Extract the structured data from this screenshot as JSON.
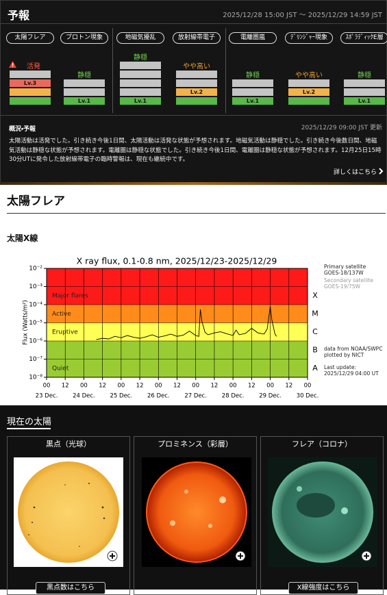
{
  "forecast": {
    "title": "予報",
    "period": "2025/12/28 15:00 JST 〜 2025/12/29 14:59 JST",
    "level_colors": [
      "#58b848",
      "#f4b24a",
      "#e96a5c"
    ],
    "items": [
      {
        "name": "太陽フレア",
        "status": "活発",
        "status_color": "#ff5a3a",
        "warning": true,
        "level": 3,
        "level_label": "Lv.3",
        "bars": 4
      },
      {
        "name": "プロトン現象",
        "status": "静穏",
        "status_color": "#6fcf4a",
        "warning": false,
        "level": 1,
        "level_label": "Lv.1",
        "bars": 3
      },
      {
        "name": "地磁気擾乱",
        "status": "静穏",
        "status_color": "#6fcf4a",
        "warning": false,
        "level": 1,
        "level_label": "Lv.1",
        "bars": 5
      },
      {
        "name": "放射線帯電子",
        "status": "やや高い",
        "status_color": "#f0a030",
        "warning": false,
        "level": 2,
        "level_label": "Lv.2",
        "bars": 4
      },
      {
        "name": "電離圏嵐",
        "status": "静穏",
        "status_color": "#6fcf4a",
        "warning": false,
        "level": 1,
        "level_label": "Lv.1",
        "bars": 3
      },
      {
        "name": "ﾃﾞﾘﾝｼﾞｬｰ現象",
        "status": "やや高い",
        "status_color": "#f0a030",
        "warning": false,
        "level": 2,
        "level_label": "Lv.2",
        "bars": 3
      },
      {
        "name": "ｽﾎﾟﾗﾃﾞｨｯｸE層",
        "status": "静穏",
        "status_color": "#6fcf4a",
        "warning": false,
        "level": 1,
        "level_label": "Lv.1",
        "bars": 3
      }
    ],
    "summary": {
      "title": "概況・予報",
      "updated": "2025/12/29 09:00 JST 更新",
      "text": "太陽活動は活発でした。引き続き今後1日間、太陽活動は活発な状態が予想されます。地磁気活動は静穏でした。引き続き今後数日間、地磁気活動は静穏な状態が予想されます。電離圏は静穏な状態でした。引き続き今後1日間、電離圏は静穏な状態が予想されます。12月25日15時30分UTに発令した放射線帯電子の臨時警報は、現在も継続中です。",
      "link": "詳しくはこちら"
    }
  },
  "flare_section": {
    "title": "太陽フレア",
    "subtitle": "太陽X線"
  },
  "chart_data": {
    "type": "line",
    "title": "X ray flux, 0.1-0.8 nm, 2025/12/23-2025/12/29",
    "ylabel": "Flux (Watts/m²)",
    "log_y": true,
    "grid": true,
    "color": "#000000",
    "xlim": [
      0,
      168
    ],
    "ylim": [
      1e-08,
      0.01
    ],
    "yticks": [
      {
        "value": 1e-08,
        "label": "10⁻⁸"
      },
      {
        "value": 1e-07,
        "label": "10⁻⁷"
      },
      {
        "value": 1e-06,
        "label": "10⁻⁶"
      },
      {
        "value": 1e-05,
        "label": "10⁻⁵"
      },
      {
        "value": 0.0001,
        "label": "10⁻⁴"
      },
      {
        "value": 0.001,
        "label": "10⁻³"
      },
      {
        "value": 0.01,
        "label": "10⁻²"
      }
    ],
    "xticks": [
      {
        "value": 0,
        "label": "00"
      },
      {
        "value": 12,
        "label": "12"
      },
      {
        "value": 24,
        "label": "00"
      },
      {
        "value": 36,
        "label": "12"
      },
      {
        "value": 48,
        "label": "00"
      },
      {
        "value": 60,
        "label": "12"
      },
      {
        "value": 72,
        "label": "00"
      },
      {
        "value": 84,
        "label": "12"
      },
      {
        "value": 96,
        "label": "00"
      },
      {
        "value": 108,
        "label": "12"
      },
      {
        "value": 120,
        "label": "00"
      },
      {
        "value": 132,
        "label": "12"
      },
      {
        "value": 144,
        "label": "00"
      },
      {
        "value": 156,
        "label": "12"
      },
      {
        "value": 168,
        "label": "00"
      }
    ],
    "xdates": [
      {
        "value": 0,
        "label": "23 Dec."
      },
      {
        "value": 24,
        "label": "24 Dec."
      },
      {
        "value": 48,
        "label": "25 Dec."
      },
      {
        "value": 72,
        "label": "26 Dec."
      },
      {
        "value": 96,
        "label": "27 Dec."
      },
      {
        "value": 120,
        "label": "28 Dec."
      },
      {
        "value": 144,
        "label": "29 Dec."
      },
      {
        "value": 168,
        "label": "30 Dec."
      }
    ],
    "bands": [
      {
        "label": "Major flares",
        "from": 0.0001,
        "to": 0.01,
        "color": "#ff1a1a"
      },
      {
        "label": "Active",
        "from": 1e-05,
        "to": 0.0001,
        "color": "#ff8c1a"
      },
      {
        "label": "Eruptive",
        "from": 1e-06,
        "to": 1e-05,
        "color": "#ffff55"
      },
      {
        "label": "Quiet",
        "from": 1e-08,
        "to": 1e-06,
        "color": "#99cc33"
      }
    ],
    "classes": [
      {
        "label": "X",
        "from": 0.0001,
        "to": 0.001
      },
      {
        "label": "M",
        "from": 1e-05,
        "to": 0.0001
      },
      {
        "label": "C",
        "from": 1e-06,
        "to": 1e-05
      },
      {
        "label": "B",
        "from": 1e-07,
        "to": 1e-06
      },
      {
        "label": "A",
        "from": 1e-08,
        "to": 1e-07
      }
    ],
    "notes": [
      {
        "lines": [
          "Primary satellite",
          "GOES-18/137W"
        ],
        "color": "#222222"
      },
      {
        "lines": [
          "Secondary satellite",
          "GOES-19/75W"
        ],
        "color": "#999999"
      },
      {
        "lines": [
          "data from NOAA/SWPC",
          "plotted by NICT"
        ],
        "color": "#222222"
      },
      {
        "lines": [
          "Last update:",
          "2025/12/29 04:00 UT"
        ],
        "color": "#222222"
      }
    ],
    "x": [
      32,
      36,
      40,
      44,
      48,
      52,
      56,
      60,
      64,
      68,
      72,
      76,
      80,
      84,
      88,
      92,
      96,
      98,
      99,
      100,
      102,
      104,
      108,
      112,
      116,
      120,
      122,
      124,
      128,
      132,
      136,
      140,
      142,
      143,
      144,
      145,
      146,
      147,
      148
    ],
    "values": [
      1.2e-06,
      1.4e-06,
      1.3e-06,
      1.8e-06,
      1.5e-06,
      2e-06,
      1.6e-06,
      1.4e-06,
      1.7e-06,
      2.2e-06,
      1.6e-06,
      1.9e-06,
      2.4e-06,
      1.8e-06,
      2.1e-06,
      3.5e-06,
      2e-06,
      1.8e-06,
      5.5e-05,
      1.2e-05,
      3e-06,
      2.2e-06,
      2.8e-06,
      3.2e-06,
      2.5e-06,
      2e-06,
      4e-06,
      2.2e-06,
      2.6e-06,
      5e-06,
      2.8e-06,
      2.4e-06,
      4.5e-06,
      2e-05,
      8e-05,
      1.5e-05,
      6e-06,
      2.5e-06,
      1.8e-06
    ]
  },
  "current_sun": {
    "title": "現在の太陽",
    "cards": [
      {
        "title": "黒点（光球）",
        "button": "黒点数はこちら"
      },
      {
        "title": "プロミネンス（彩層）"
      },
      {
        "title": "フレア（コロナ）",
        "button": "X線強度はこちら"
      }
    ]
  }
}
